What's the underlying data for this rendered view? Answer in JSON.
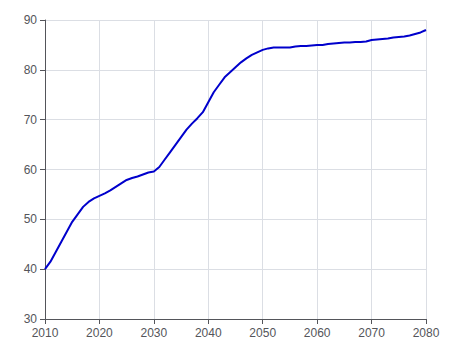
{
  "chart_data": {
    "type": "line",
    "x": [
      2010,
      2011,
      2012,
      2013,
      2014,
      2015,
      2016,
      2017,
      2018,
      2019,
      2020,
      2021,
      2022,
      2023,
      2024,
      2025,
      2026,
      2027,
      2028,
      2029,
      2030,
      2031,
      2032,
      2033,
      2034,
      2035,
      2036,
      2037,
      2038,
      2039,
      2040,
      2041,
      2042,
      2043,
      2044,
      2045,
      2046,
      2047,
      2048,
      2049,
      2050,
      2051,
      2052,
      2053,
      2054,
      2055,
      2056,
      2057,
      2058,
      2059,
      2060,
      2061,
      2062,
      2063,
      2064,
      2065,
      2066,
      2067,
      2068,
      2069,
      2070,
      2071,
      2072,
      2073,
      2074,
      2075,
      2076,
      2077,
      2078,
      2079,
      2080
    ],
    "values": [
      40.0,
      41.5,
      43.5,
      45.5,
      47.5,
      49.5,
      51.0,
      52.5,
      53.5,
      54.2,
      54.7,
      55.2,
      55.8,
      56.5,
      57.2,
      57.9,
      58.3,
      58.6,
      59.0,
      59.4,
      59.6,
      60.5,
      62.0,
      63.5,
      65.0,
      66.5,
      68.0,
      69.2,
      70.3,
      71.5,
      73.5,
      75.5,
      77.0,
      78.5,
      79.5,
      80.5,
      81.5,
      82.3,
      83.0,
      83.5,
      84.0,
      84.3,
      84.5,
      84.5,
      84.5,
      84.5,
      84.7,
      84.8,
      84.8,
      84.9,
      85.0,
      85.0,
      85.2,
      85.3,
      85.4,
      85.5,
      85.5,
      85.6,
      85.6,
      85.7,
      86.0,
      86.1,
      86.2,
      86.3,
      86.5,
      86.6,
      86.7,
      86.9,
      87.2,
      87.5,
      88.0
    ],
    "color": "#0000CC",
    "xlim": [
      2010,
      2080
    ],
    "ylim": [
      30,
      90
    ],
    "xticks": [
      2010,
      2020,
      2030,
      2040,
      2050,
      2060,
      2070,
      2080
    ],
    "yticks": [
      30,
      40,
      50,
      60,
      70,
      80,
      90
    ],
    "grid": true
  }
}
